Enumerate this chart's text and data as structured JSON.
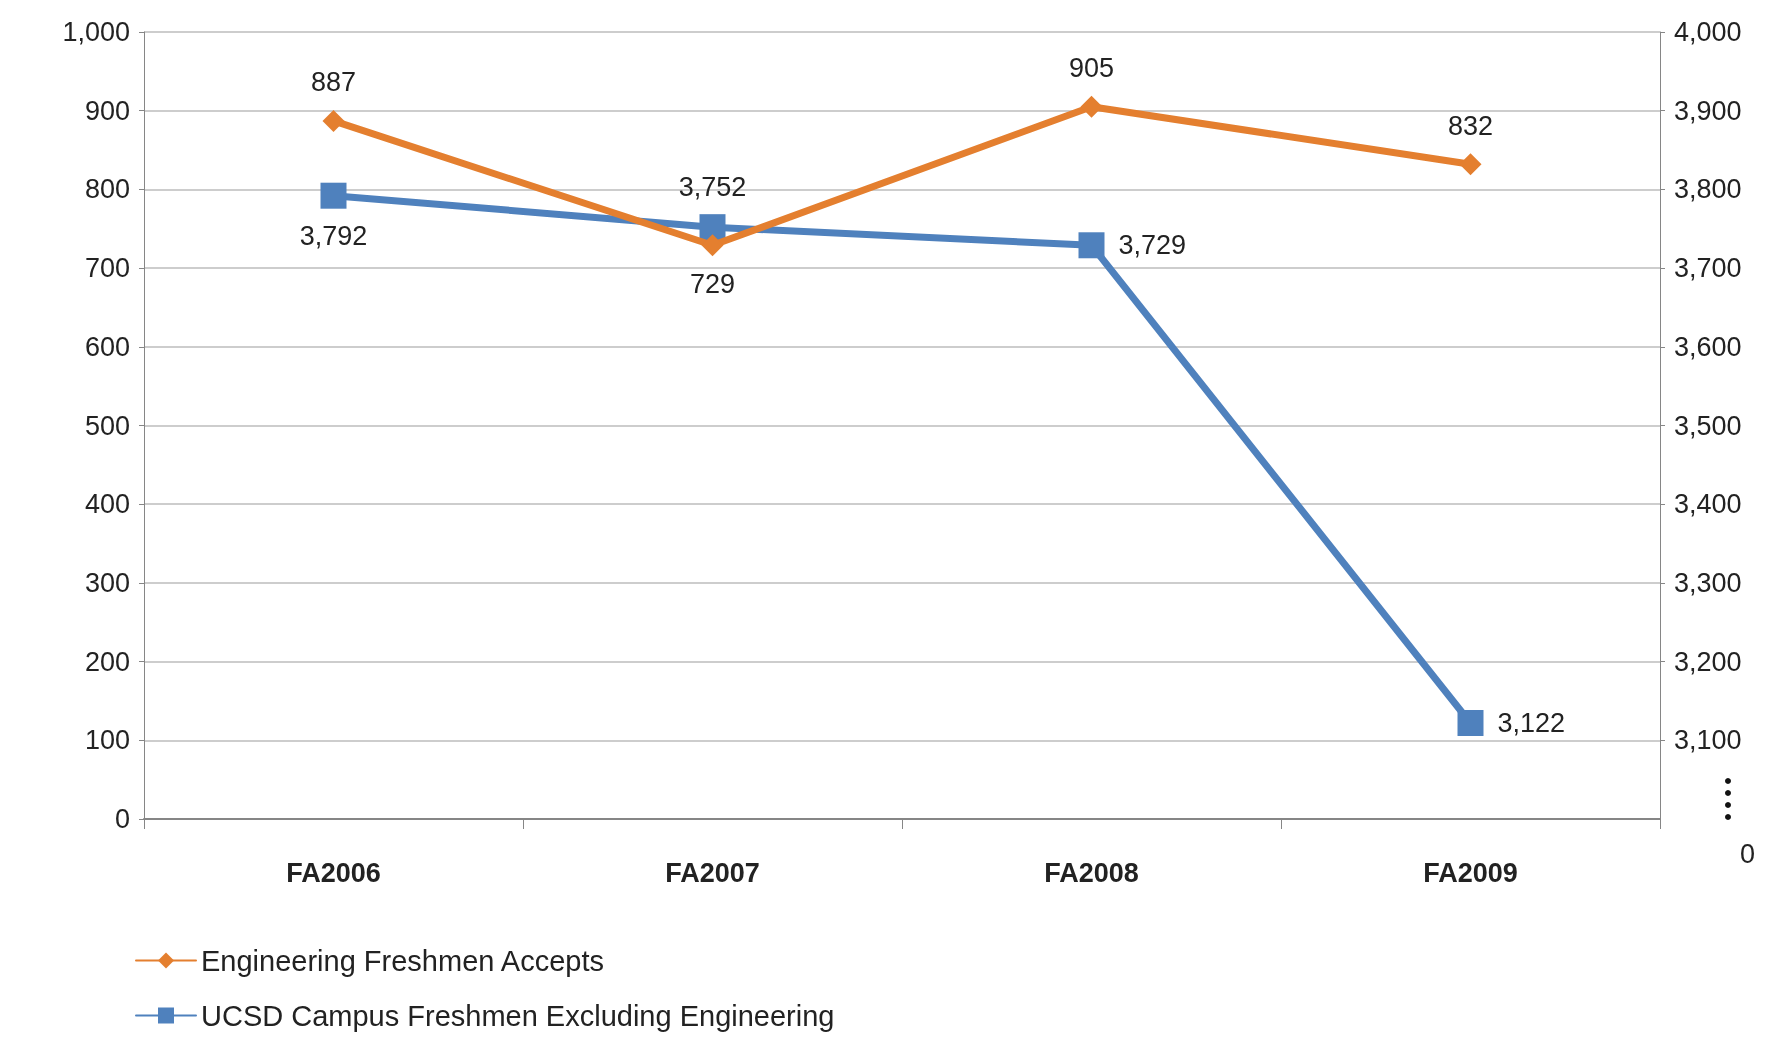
{
  "chart_data": {
    "type": "line",
    "categories": [
      "FA2006",
      "FA2007",
      "FA2008",
      "FA2009"
    ],
    "series": [
      {
        "name": "Engineering Freshmen Accepts",
        "color": "#e47f2f",
        "marker": "diamond",
        "values": [
          887,
          729,
          905,
          832
        ],
        "value_labels": [
          "887",
          "729",
          "905",
          "832"
        ]
      },
      {
        "name": "UCSD Campus Freshmen Excluding Engineering",
        "color": "#4f81bd",
        "marker": "square",
        "axis": "y2",
        "values": [
          3792,
          3752,
          3729,
          3122
        ],
        "value_labels": [
          "3,792",
          "3,752",
          "3,729",
          "3,122"
        ]
      }
    ],
    "ylim": [
      0,
      1000
    ],
    "yticks": [
      0,
      100,
      200,
      300,
      400,
      500,
      600,
      700,
      800,
      900,
      {
        "value": 1000,
        "label": "1,000"
      }
    ],
    "y2lim": [
      3000,
      4000
    ],
    "y2ticks": [
      {
        "value": 3100,
        "label": "3,100"
      },
      {
        "value": 3200,
        "label": "3,200"
      },
      {
        "value": 3300,
        "label": "3,300"
      },
      {
        "value": 3400,
        "label": "3,400"
      },
      {
        "value": 3500,
        "label": "3,500"
      },
      {
        "value": 3600,
        "label": "3,600"
      },
      {
        "value": 3700,
        "label": "3,700"
      },
      {
        "value": 3800,
        "label": "3,800"
      },
      {
        "value": 3900,
        "label": "3,900"
      },
      {
        "value": 4000,
        "label": "4,000"
      }
    ],
    "annotations": [
      "0"
    ],
    "grid": "y",
    "legend": "bottom left",
    "line_style": "solid"
  }
}
